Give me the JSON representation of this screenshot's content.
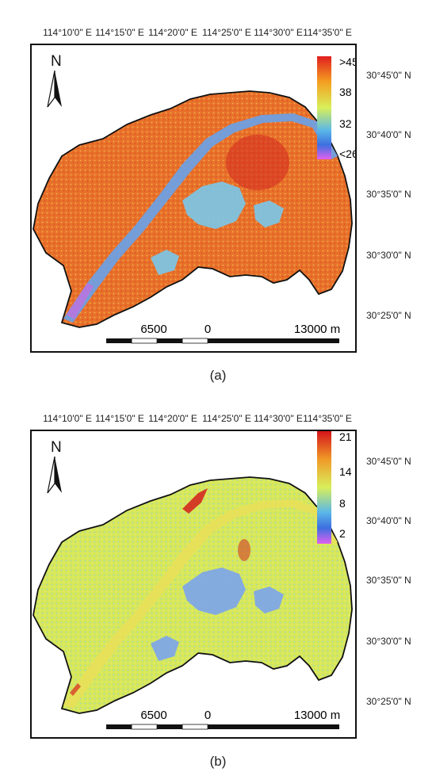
{
  "lon_labels": [
    "114°10'0\" E",
    "114°15'0\" E",
    "114°20'0\" E",
    "114°25'0\" E",
    "114°30'0\" E",
    "114°35'0\" E"
  ],
  "lat_labels": [
    "30°45'0\" N",
    "30°40'0\" N",
    "30°35'0\" N",
    "30°30'0\" N",
    "30°25'0\" N"
  ],
  "north_label": "N",
  "scale": {
    "left": "6500",
    "middle": "0",
    "right": "13000 m"
  },
  "panel_a": {
    "caption": "(a)",
    "legend": {
      "max": ">45",
      "t1": "38",
      "t2": "32",
      "min": "<26"
    },
    "colors": {
      "city": "#e8712a",
      "river": "#6f9fe0",
      "lake": "#7fc3e0",
      "hot": "#d2271f",
      "cool": "#c070e0"
    }
  },
  "panel_b": {
    "caption": "(b)",
    "legend": {
      "max": "21",
      "t1": "14",
      "t2": "8",
      "min": "2"
    },
    "colors": {
      "city": "#d6e85a",
      "river": "#e8e05a",
      "lake": "#7fa8e6",
      "hot": "#d42a1f",
      "cool": "#8fd0d8"
    }
  }
}
